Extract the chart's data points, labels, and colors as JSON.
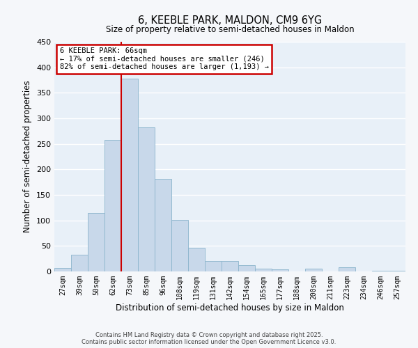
{
  "title": "6, KEEBLE PARK, MALDON, CM9 6YG",
  "subtitle": "Size of property relative to semi-detached houses in Maldon",
  "xlabel": "Distribution of semi-detached houses by size in Maldon",
  "ylabel": "Number of semi-detached properties",
  "bar_color": "#c8d8ea",
  "bar_edge_color": "#8ab4cc",
  "background_color": "#e8f0f8",
  "fig_background_color": "#f5f7fa",
  "grid_color": "#ffffff",
  "categories": [
    "27sqm",
    "39sqm",
    "50sqm",
    "62sqm",
    "73sqm",
    "85sqm",
    "96sqm",
    "108sqm",
    "119sqm",
    "131sqm",
    "142sqm",
    "154sqm",
    "165sqm",
    "177sqm",
    "188sqm",
    "200sqm",
    "211sqm",
    "223sqm",
    "234sqm",
    "246sqm",
    "257sqm"
  ],
  "values": [
    7,
    33,
    115,
    258,
    378,
    282,
    181,
    101,
    47,
    21,
    21,
    12,
    5,
    4,
    0,
    6,
    0,
    8,
    0,
    2,
    1
  ],
  "ylim": [
    0,
    450
  ],
  "yticks": [
    0,
    50,
    100,
    150,
    200,
    250,
    300,
    350,
    400,
    450
  ],
  "vline_color": "#cc0000",
  "vline_position": 3.5,
  "annotation_title": "6 KEEBLE PARK: 66sqm",
  "annotation_line1": "← 17% of semi-detached houses are smaller (246)",
  "annotation_line2": "82% of semi-detached houses are larger (1,193) →",
  "annotation_box_color": "#cc0000",
  "footnote1": "Contains HM Land Registry data © Crown copyright and database right 2025.",
  "footnote2": "Contains public sector information licensed under the Open Government Licence v3.0."
}
